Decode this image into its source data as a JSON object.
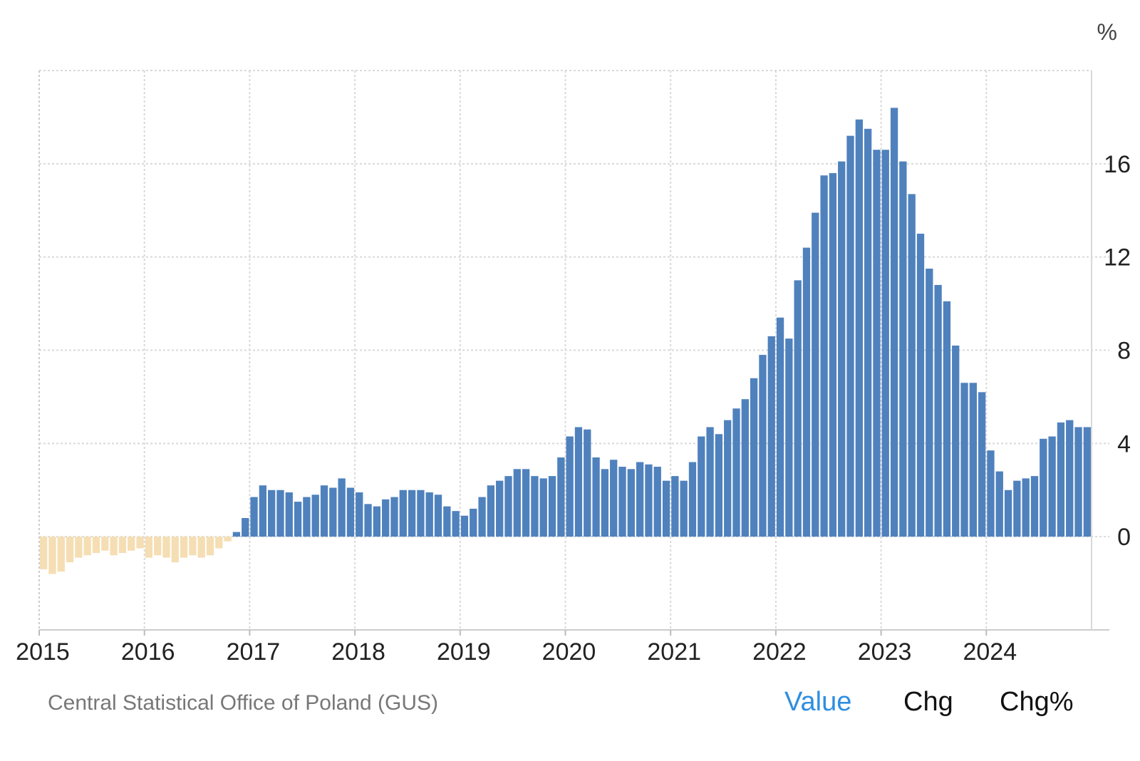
{
  "chart_data": {
    "type": "bar",
    "unit": "%",
    "ylim": [
      -4,
      20
    ],
    "y_ticks": [
      0,
      4,
      8,
      12,
      16
    ],
    "x_ticks": [
      "2015",
      "2016",
      "2017",
      "2018",
      "2019",
      "2020",
      "2021",
      "2022",
      "2023",
      "2024"
    ],
    "grid": true,
    "positive_color": "#4f81bd",
    "negative_color": "#f5deb3",
    "x_start": "2015-01",
    "months": [
      "2015-01",
      "2015-02",
      "2015-03",
      "2015-04",
      "2015-05",
      "2015-06",
      "2015-07",
      "2015-08",
      "2015-09",
      "2015-10",
      "2015-11",
      "2015-12",
      "2016-01",
      "2016-02",
      "2016-03",
      "2016-04",
      "2016-05",
      "2016-06",
      "2016-07",
      "2016-08",
      "2016-09",
      "2016-10",
      "2016-11",
      "2016-12",
      "2017-01",
      "2017-02",
      "2017-03",
      "2017-04",
      "2017-05",
      "2017-06",
      "2017-07",
      "2017-08",
      "2017-09",
      "2017-10",
      "2017-11",
      "2017-12",
      "2018-01",
      "2018-02",
      "2018-03",
      "2018-04",
      "2018-05",
      "2018-06",
      "2018-07",
      "2018-08",
      "2018-09",
      "2018-10",
      "2018-11",
      "2018-12",
      "2019-01",
      "2019-02",
      "2019-03",
      "2019-04",
      "2019-05",
      "2019-06",
      "2019-07",
      "2019-08",
      "2019-09",
      "2019-10",
      "2019-11",
      "2019-12",
      "2020-01",
      "2020-02",
      "2020-03",
      "2020-04",
      "2020-05",
      "2020-06",
      "2020-07",
      "2020-08",
      "2020-09",
      "2020-10",
      "2020-11",
      "2020-12",
      "2021-01",
      "2021-02",
      "2021-03",
      "2021-04",
      "2021-05",
      "2021-06",
      "2021-07",
      "2021-08",
      "2021-09",
      "2021-10",
      "2021-11",
      "2021-12",
      "2022-01",
      "2022-02",
      "2022-03",
      "2022-04",
      "2022-05",
      "2022-06",
      "2022-07",
      "2022-08",
      "2022-09",
      "2022-10",
      "2022-11",
      "2022-12",
      "2023-01",
      "2023-02",
      "2023-03",
      "2023-04",
      "2023-05",
      "2023-06",
      "2023-07",
      "2023-08",
      "2023-09",
      "2023-10",
      "2023-11",
      "2023-12",
      "2024-01",
      "2024-02",
      "2024-03",
      "2024-04",
      "2024-05",
      "2024-06",
      "2024-07",
      "2024-08",
      "2024-09",
      "2024-10",
      "2024-11",
      "2024-12"
    ],
    "values": [
      -1.4,
      -1.6,
      -1.5,
      -1.1,
      -0.9,
      -0.8,
      -0.7,
      -0.6,
      -0.8,
      -0.7,
      -0.6,
      -0.5,
      -0.9,
      -0.8,
      -0.9,
      -1.1,
      -0.9,
      -0.8,
      -0.9,
      -0.8,
      -0.5,
      -0.2,
      0.2,
      0.8,
      1.7,
      2.2,
      2.0,
      2.0,
      1.9,
      1.5,
      1.7,
      1.8,
      2.2,
      2.1,
      2.5,
      2.1,
      1.9,
      1.4,
      1.3,
      1.6,
      1.7,
      2.0,
      2.0,
      2.0,
      1.9,
      1.8,
      1.3,
      1.1,
      0.9,
      1.2,
      1.7,
      2.2,
      2.4,
      2.6,
      2.9,
      2.9,
      2.6,
      2.5,
      2.6,
      3.4,
      4.3,
      4.7,
      4.6,
      3.4,
      2.9,
      3.3,
      3.0,
      2.9,
      3.2,
      3.1,
      3.0,
      2.4,
      2.6,
      2.4,
      3.2,
      4.3,
      4.7,
      4.4,
      5.0,
      5.5,
      5.9,
      6.8,
      7.8,
      8.6,
      9.4,
      8.5,
      11.0,
      12.4,
      13.9,
      15.5,
      15.6,
      16.1,
      17.2,
      17.9,
      17.5,
      16.6,
      16.6,
      18.4,
      16.1,
      14.7,
      13.0,
      11.5,
      10.8,
      10.1,
      8.2,
      6.6,
      6.6,
      6.2,
      3.7,
      2.8,
      2.0,
      2.4,
      2.5,
      2.6,
      4.2,
      4.3,
      4.9,
      5.0,
      4.7,
      4.7
    ]
  },
  "footer": {
    "source": "Central Statistical Office of Poland (GUS)",
    "tabs": [
      {
        "label": "Value",
        "active": true
      },
      {
        "label": "Chg",
        "active": false
      },
      {
        "label": "Chg%",
        "active": false
      }
    ]
  }
}
